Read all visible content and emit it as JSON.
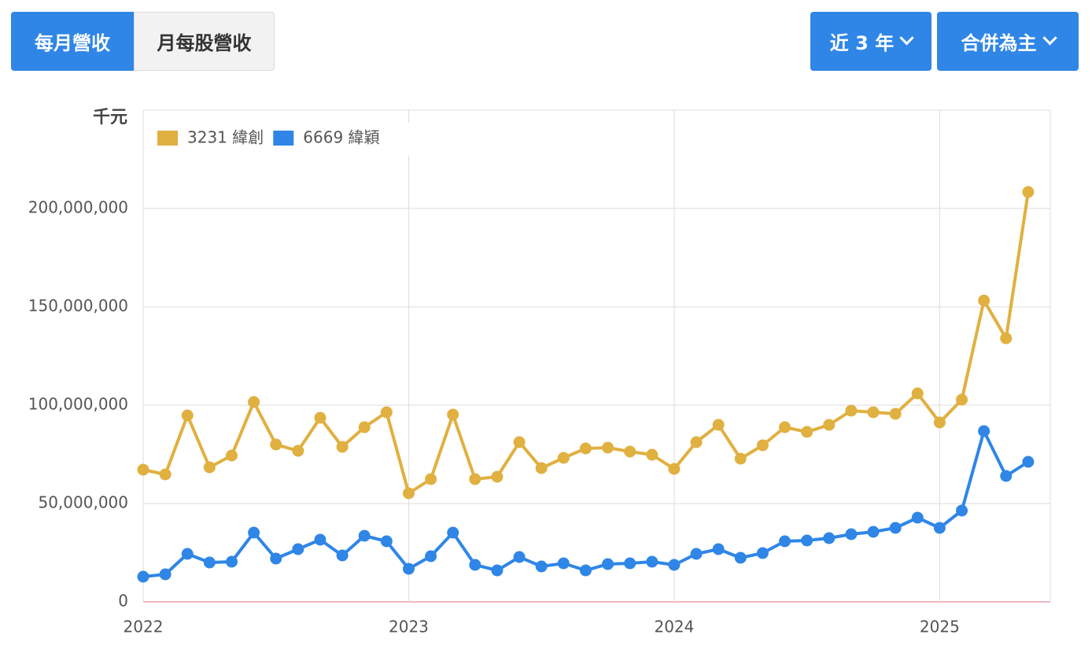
{
  "tabs": [
    "每月營收",
    "月每股營收"
  ],
  "dropdowns": [
    "近 3 年",
    "合併為主"
  ],
  "chart_data": {
    "type": "line",
    "unit_label": "千元",
    "x": [
      "2022-01",
      "2022-02",
      "2022-03",
      "2022-04",
      "2022-05",
      "2022-06",
      "2022-07",
      "2022-08",
      "2022-09",
      "2022-10",
      "2022-11",
      "2022-12",
      "2023-01",
      "2023-02",
      "2023-03",
      "2023-04",
      "2023-05",
      "2023-06",
      "2023-07",
      "2023-08",
      "2023-09",
      "2023-10",
      "2023-11",
      "2023-12",
      "2024-01",
      "2024-02",
      "2024-03",
      "2024-04",
      "2024-05",
      "2024-06",
      "2024-07",
      "2024-08",
      "2024-09",
      "2024-10",
      "2024-11",
      "2024-12",
      "2025-01",
      "2025-02",
      "2025-03",
      "2025-04",
      "2025-05"
    ],
    "xlim": [
      "2022-01",
      "2025-06"
    ],
    "xticks": [
      {
        "value": "2022-01",
        "label": "2022"
      },
      {
        "value": "2023-01",
        "label": "2023"
      },
      {
        "value": "2024-01",
        "label": "2024"
      },
      {
        "value": "2025-01",
        "label": "2025"
      }
    ],
    "ylim": [
      0,
      250000000
    ],
    "yticks": [
      0,
      {
        "value": 50000000,
        "label": "50,000,000"
      },
      {
        "value": 100000000,
        "label": "100,000,000"
      },
      {
        "value": 150000000,
        "label": "150,000,000"
      },
      {
        "value": 200000000,
        "label": "200,000,000"
      }
    ],
    "grid": true,
    "legend": "top-left",
    "series": [
      {
        "name": "3231 緯創",
        "color": "#e0b040",
        "values": [
          67200000,
          64800000,
          94800000,
          68400000,
          74400000,
          101600000,
          80000000,
          76800000,
          93600000,
          78800000,
          88800000,
          96400000,
          55200000,
          62400000,
          95200000,
          62400000,
          63600000,
          81200000,
          68000000,
          73200000,
          78000000,
          78400000,
          76400000,
          74800000,
          67600000,
          81200000,
          90000000,
          72800000,
          79600000,
          88800000,
          86400000,
          90000000,
          97200000,
          96400000,
          95600000,
          106000000,
          91200000,
          102800000,
          153200000,
          134000000,
          208400000
        ]
      },
      {
        "name": "6669 緯穎",
        "color": "#2f86e6",
        "values": [
          12800000,
          14000000,
          24400000,
          20000000,
          20400000,
          35200000,
          22000000,
          26800000,
          31600000,
          23600000,
          33600000,
          30800000,
          16800000,
          23200000,
          35200000,
          18800000,
          16000000,
          22800000,
          18000000,
          19600000,
          16000000,
          19200000,
          19600000,
          20400000,
          18800000,
          24400000,
          26800000,
          22400000,
          24800000,
          30800000,
          31200000,
          32400000,
          34400000,
          35600000,
          37600000,
          42800000,
          37600000,
          46400000,
          86800000,
          64000000,
          71200000
        ]
      }
    ]
  }
}
